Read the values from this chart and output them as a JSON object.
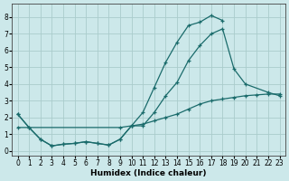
{
  "xlabel": "Humidex (Indice chaleur)",
  "background_color": "#cce8ea",
  "grid_color": "#aacccc",
  "line_color": "#1a6b6b",
  "xlim": [
    -0.5,
    23.5
  ],
  "ylim": [
    -0.3,
    8.8
  ],
  "xticks": [
    0,
    1,
    2,
    3,
    4,
    5,
    6,
    7,
    8,
    9,
    10,
    11,
    12,
    13,
    14,
    15,
    16,
    17,
    18,
    19,
    20,
    21,
    22,
    23
  ],
  "yticks": [
    0,
    1,
    2,
    3,
    4,
    5,
    6,
    7,
    8
  ],
  "series1": {
    "x": [
      0,
      1,
      2,
      3,
      4,
      5,
      6,
      7,
      8,
      9,
      10,
      11,
      12,
      13,
      14,
      15,
      16,
      17,
      18
    ],
    "y": [
      2.2,
      1.4,
      0.7,
      0.3,
      0.4,
      0.45,
      0.55,
      0.45,
      0.35,
      0.7,
      1.5,
      2.3,
      3.8,
      5.3,
      6.5,
      7.5,
      7.7,
      8.1,
      7.8
    ]
  },
  "series2": {
    "x": [
      0,
      1,
      2,
      3,
      4,
      5,
      6,
      7,
      8,
      9,
      10,
      11,
      12,
      13,
      14,
      15,
      16,
      17,
      18,
      19,
      20,
      22,
      23
    ],
    "y": [
      2.2,
      1.4,
      0.7,
      0.3,
      0.4,
      0.45,
      0.55,
      0.45,
      0.35,
      0.7,
      1.5,
      1.5,
      2.3,
      3.3,
      4.1,
      5.4,
      6.3,
      7.0,
      7.3,
      4.9,
      4.0,
      3.5,
      3.3
    ]
  },
  "series3": {
    "x": [
      0,
      9,
      10,
      11,
      12,
      13,
      14,
      15,
      16,
      17,
      18,
      19,
      20,
      21,
      22,
      23
    ],
    "y": [
      1.4,
      1.4,
      1.5,
      1.6,
      1.8,
      2.0,
      2.2,
      2.5,
      2.8,
      3.0,
      3.1,
      3.2,
      3.3,
      3.35,
      3.4,
      3.4
    ]
  }
}
